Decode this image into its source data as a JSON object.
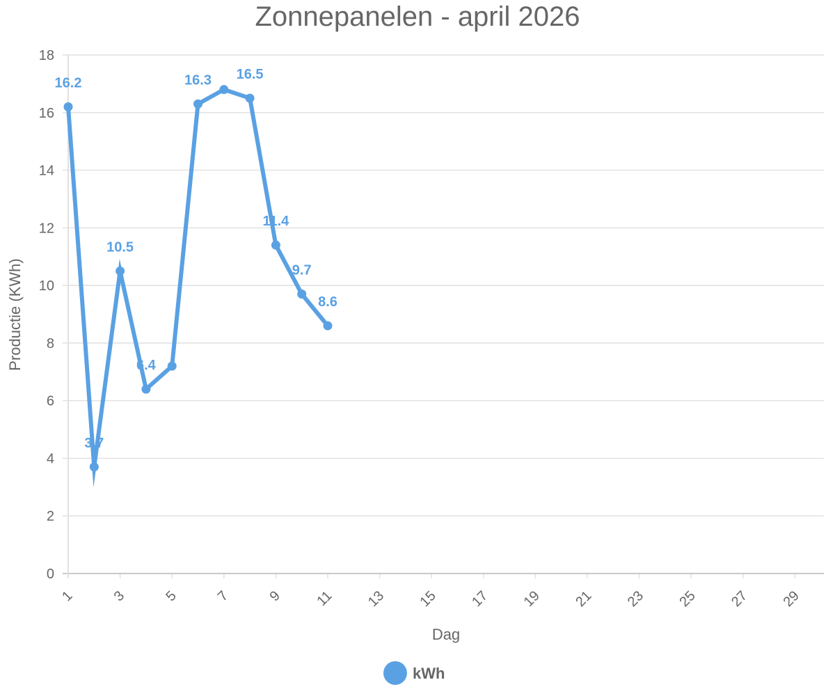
{
  "chart_data": {
    "type": "line",
    "title": "Zonnepanelen - april 2026",
    "xlabel": "Dag",
    "ylabel": "Productie (KWh)",
    "ylim": [
      0,
      18
    ],
    "yticks": [
      0,
      2,
      4,
      6,
      8,
      10,
      12,
      14,
      16,
      18
    ],
    "xlim": [
      1,
      30
    ],
    "xticks": [
      1,
      3,
      5,
      7,
      9,
      11,
      13,
      15,
      17,
      19,
      21,
      23,
      25,
      27,
      29
    ],
    "grid": true,
    "legend_position": "bottom",
    "series": [
      {
        "name": "kWh",
        "color": "#5aa1e3",
        "x": [
          1,
          2,
          3,
          4,
          5,
          6,
          7,
          8,
          9,
          10,
          11
        ],
        "values": [
          16.2,
          3.7,
          10.5,
          6.4,
          7.2,
          16.3,
          16.8,
          16.5,
          11.4,
          9.7,
          8.6
        ],
        "labels": [
          "16.2",
          "3.7",
          "10.5",
          "6.4",
          "",
          "16.3",
          "",
          "16.5",
          "11.4",
          "9.7",
          "8.6"
        ]
      }
    ]
  }
}
